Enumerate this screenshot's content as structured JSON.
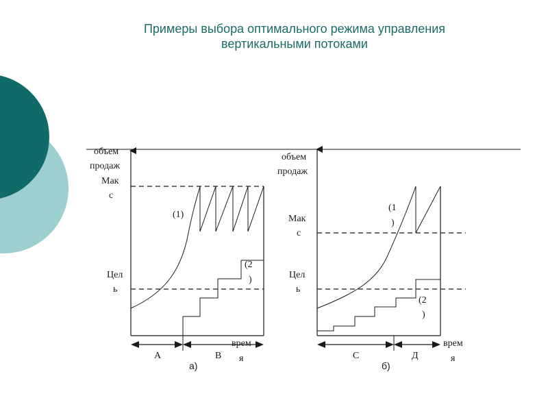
{
  "title": {
    "line1": "Примеры  выбора оптимального  режима  управления",
    "line2": "вертикальными  потоками"
  },
  "colors": {
    "title": "#1b6b66",
    "circle_dark": "#0f6b67",
    "circle_light": "#9dcfd0",
    "ink": "#1a1a1a"
  },
  "panel_a": {
    "caption": "а)",
    "y_axis_label_1": "объем",
    "y_axis_label_2": "продаж",
    "max_label_1": "Мак",
    "max_label_2": "с",
    "target_label_1": "Цел",
    "target_label_2": "ь",
    "time_label_1": "врем",
    "time_label_2": "я",
    "curve1_label": "(1)",
    "curve2_label_1": "(2",
    "curve2_label_2": ")",
    "segment_1": "А",
    "segment_2": "В"
  },
  "panel_b": {
    "caption": "б)",
    "y_axis_label_1": "объем",
    "y_axis_label_2": "продаж",
    "max_label_1": "Мак",
    "max_label_2": "с",
    "target_label_1": "Цел",
    "target_label_2": "ь",
    "time_label_1": "врем",
    "time_label_2": "я",
    "curve1_label_1": "(1",
    "curve1_label_2": ")",
    "curve2_label_1": "(2",
    "curve2_label_2": ")",
    "segment_1": "С",
    "segment_2": "Д"
  }
}
